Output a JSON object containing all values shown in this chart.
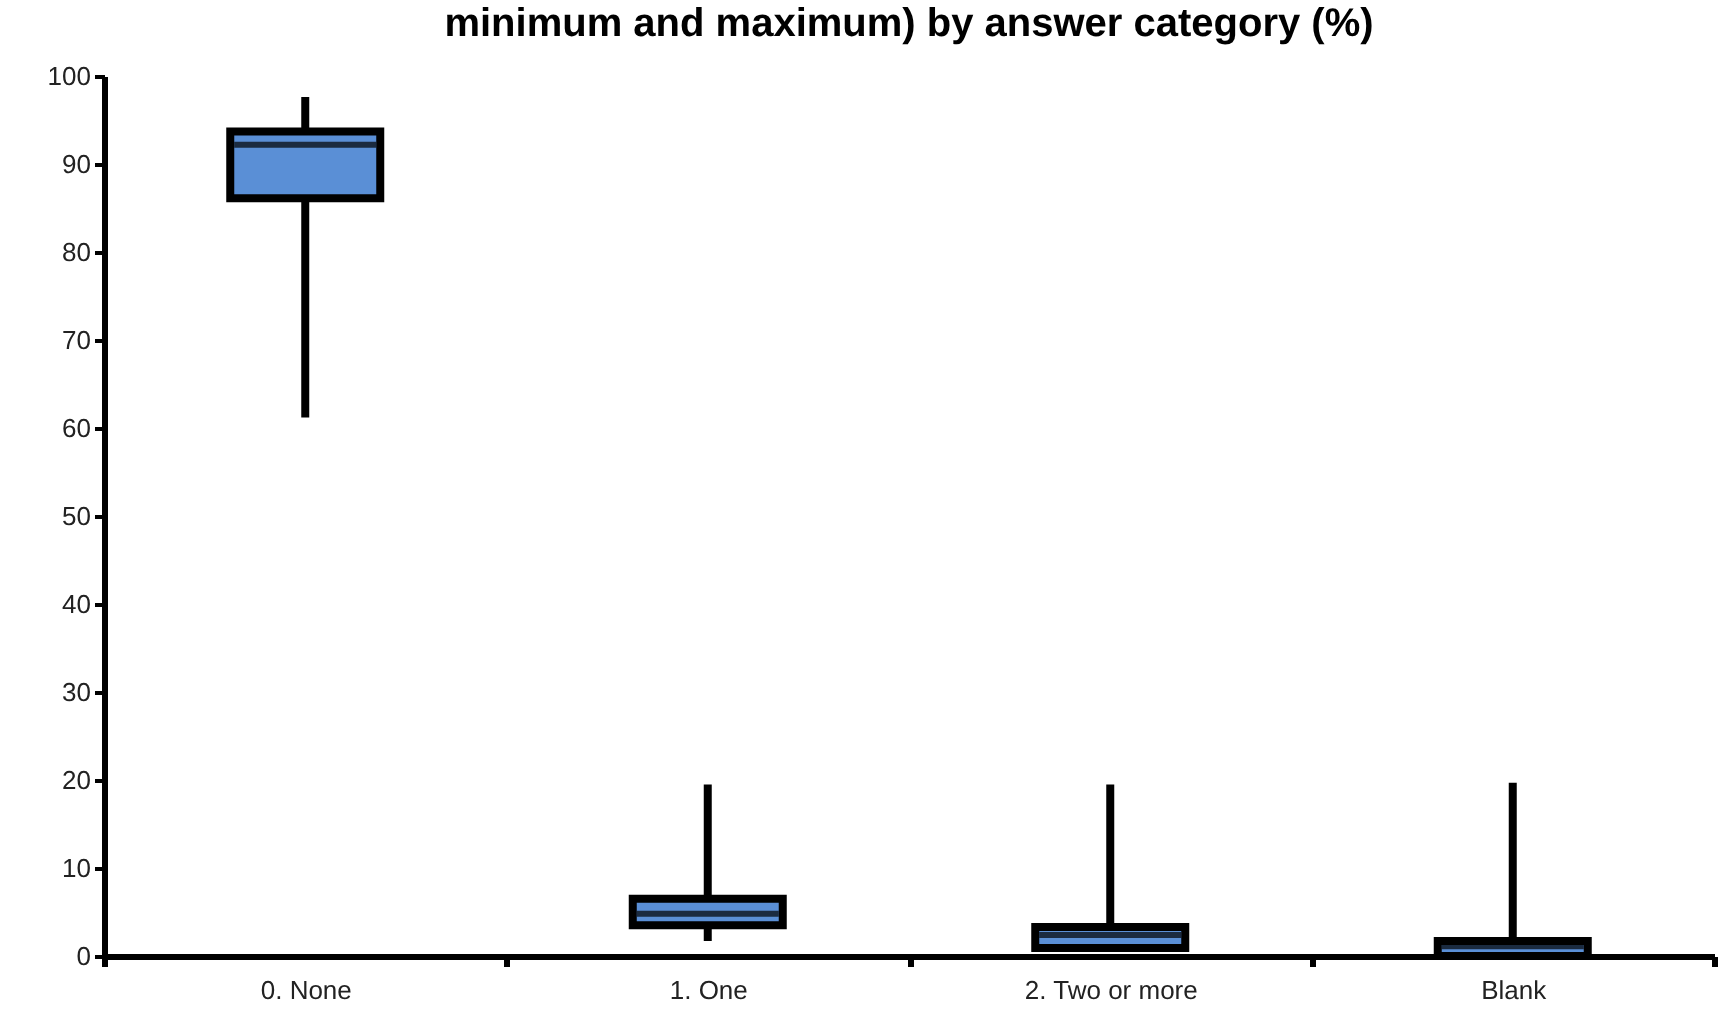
{
  "chart_data": {
    "type": "box",
    "title": "minimum and maximum) by answer category (%)",
    "categories": [
      "0. None",
      "1. One",
      "2. Two or more",
      "Blank"
    ],
    "boxes": [
      {
        "low": 61.2,
        "q1": 86.1,
        "median": 92.2,
        "q3": 93.7,
        "high": 97.6
      },
      {
        "low": 1.7,
        "q1": 3.5,
        "median": 4.8,
        "q3": 6.5,
        "high": 19.5
      },
      {
        "low": 0.5,
        "q1": 0.9,
        "median": 2.4,
        "q3": 3.3,
        "high": 19.5
      },
      {
        "low": 0,
        "q1": 0,
        "median": 1.1,
        "q3": 1.7,
        "high": 19.7
      }
    ],
    "color": "#5a8fd6",
    "ylim": [
      0,
      100
    ],
    "yticks": [
      0,
      10,
      20,
      30,
      40,
      50,
      60,
      70,
      80,
      90,
      100
    ],
    "grid": false
  }
}
